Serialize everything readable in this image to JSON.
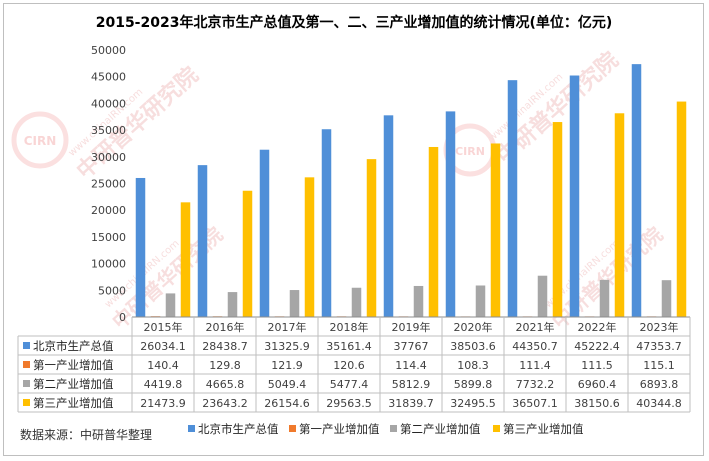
{
  "chart_data": {
    "type": "bar",
    "title": "2015-2023年北京市生产总值及第一、二、三产业增加值的统计情况(单位：亿元)",
    "categories": [
      "2015年",
      "2016年",
      "2017年",
      "2018年",
      "2019年",
      "2020年",
      "2021年",
      "2022年",
      "2023年"
    ],
    "series": [
      {
        "name": "北京市生产总值",
        "color": "#4f8fd8",
        "values": [
          26034.1,
          28438.7,
          31325.9,
          35161.4,
          37767,
          38503.6,
          44350.7,
          45222.4,
          47353.7
        ],
        "labels": [
          "26034.1",
          "28438.7",
          "31325.9",
          "35161.4",
          "37767",
          "38503.6",
          "44350.7",
          "45222.4",
          "47353.7"
        ]
      },
      {
        "name": "第一产业增加值",
        "color": "#f07a2c",
        "values": [
          140.4,
          129.8,
          121.9,
          120.6,
          114.4,
          108.3,
          111.4,
          111.5,
          115.1
        ],
        "labels": [
          "140.4",
          "129.8",
          "121.9",
          "120.6",
          "114.4",
          "108.3",
          "111.4",
          "111.5",
          "115.1"
        ]
      },
      {
        "name": "第二产业增加值",
        "color": "#a6a6a6",
        "values": [
          4419.8,
          4665.8,
          5049.4,
          5477.4,
          5812.9,
          5899.8,
          7732.2,
          6960.4,
          6893.8
        ],
        "labels": [
          "4419.8",
          "4665.8",
          "5049.4",
          "5477.4",
          "5812.9",
          "5899.8",
          "7732.2",
          "6960.4",
          "6893.8"
        ]
      },
      {
        "name": "第三产业增加值",
        "color": "#ffc000",
        "values": [
          21473.9,
          23643.2,
          26154.6,
          29563.5,
          31839.7,
          32495.5,
          36507.1,
          38150.6,
          40344.8
        ],
        "labels": [
          "21473.9",
          "23643.2",
          "26154.6",
          "29563.5",
          "31839.7",
          "32495.5",
          "36507.1",
          "38150.6",
          "40344.8"
        ]
      }
    ],
    "ylim": [
      0,
      50000
    ],
    "yticks": [
      0,
      5000,
      10000,
      15000,
      20000,
      25000,
      30000,
      35000,
      40000,
      45000,
      50000
    ],
    "grid": false,
    "legend": "bottom",
    "data_table": true
  },
  "source": "数据来源：中研普华整理",
  "watermark": {
    "text": "中研普华研究院",
    "url": "www.chinaIRN.com",
    "badge": "CIRN"
  }
}
